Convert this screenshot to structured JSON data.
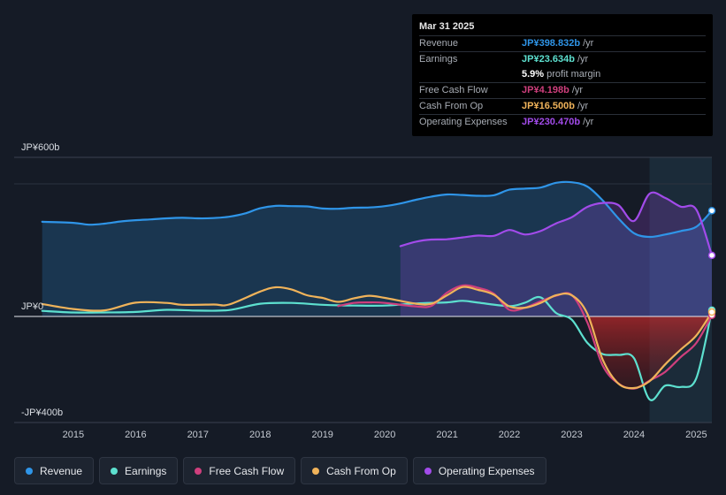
{
  "chart_data": {
    "type": "line",
    "y_axis_labels": {
      "top": "JP¥600b",
      "zero": "JP¥0",
      "bottom": "-JP¥400b"
    },
    "ylim": [
      -400,
      600
    ],
    "x_ticks": [
      "2015",
      "2016",
      "2017",
      "2018",
      "2019",
      "2020",
      "2021",
      "2022",
      "2023",
      "2024",
      "2025"
    ],
    "xlim": [
      2014.05,
      2025.25
    ],
    "forecast_start": 2024.25,
    "series": [
      {
        "name": "Revenue",
        "color": "#2f95e8",
        "fill": true,
        "points": [
          [
            2014.5,
            357
          ],
          [
            2015,
            353
          ],
          [
            2015.25,
            346
          ],
          [
            2015.5,
            350
          ],
          [
            2015.75,
            358
          ],
          [
            2016,
            363
          ],
          [
            2016.25,
            366
          ],
          [
            2016.5,
            370
          ],
          [
            2016.75,
            372
          ],
          [
            2017,
            370
          ],
          [
            2017.25,
            371
          ],
          [
            2017.5,
            376
          ],
          [
            2017.75,
            388
          ],
          [
            2018,
            408
          ],
          [
            2018.25,
            417
          ],
          [
            2018.5,
            416
          ],
          [
            2018.75,
            415
          ],
          [
            2019,
            407
          ],
          [
            2019.25,
            406
          ],
          [
            2019.5,
            410
          ],
          [
            2019.75,
            411
          ],
          [
            2020,
            416
          ],
          [
            2020.25,
            426
          ],
          [
            2020.5,
            440
          ],
          [
            2020.75,
            452
          ],
          [
            2021,
            460
          ],
          [
            2021.25,
            458
          ],
          [
            2021.5,
            455
          ],
          [
            2021.75,
            457
          ],
          [
            2022,
            478
          ],
          [
            2022.25,
            482
          ],
          [
            2022.5,
            486
          ],
          [
            2022.75,
            504
          ],
          [
            2023,
            506
          ],
          [
            2023.25,
            490
          ],
          [
            2023.5,
            437
          ],
          [
            2023.75,
            370
          ],
          [
            2024,
            314
          ],
          [
            2024.25,
            300
          ],
          [
            2024.5,
            309
          ],
          [
            2024.75,
            322
          ],
          [
            2025,
            338
          ],
          [
            2025.25,
            398.832
          ]
        ]
      },
      {
        "name": "Operating Expenses",
        "color": "#a24bea",
        "fill": true,
        "points": [
          [
            2020.25,
            265
          ],
          [
            2020.5,
            282
          ],
          [
            2020.75,
            290
          ],
          [
            2021,
            291
          ],
          [
            2021.25,
            298
          ],
          [
            2021.5,
            305
          ],
          [
            2021.75,
            304
          ],
          [
            2022,
            326
          ],
          [
            2022.25,
            309
          ],
          [
            2022.5,
            322
          ],
          [
            2022.75,
            351
          ],
          [
            2023,
            374
          ],
          [
            2023.25,
            413
          ],
          [
            2023.5,
            428
          ],
          [
            2023.75,
            420
          ],
          [
            2024,
            360
          ],
          [
            2024.25,
            463
          ],
          [
            2024.5,
            447
          ],
          [
            2024.75,
            414
          ],
          [
            2025,
            403
          ],
          [
            2025.25,
            230.47
          ]
        ]
      },
      {
        "name": "Earnings",
        "color": "#5de0cf",
        "fill": false,
        "points": [
          [
            2014.5,
            21
          ],
          [
            2015,
            15
          ],
          [
            2015.5,
            15
          ],
          [
            2016,
            17
          ],
          [
            2016.5,
            25
          ],
          [
            2017,
            22
          ],
          [
            2017.5,
            24
          ],
          [
            2018,
            48
          ],
          [
            2018.5,
            51
          ],
          [
            2019,
            44
          ],
          [
            2019.5,
            41
          ],
          [
            2020,
            41
          ],
          [
            2020.5,
            49
          ],
          [
            2021,
            53
          ],
          [
            2021.25,
            59
          ],
          [
            2021.5,
            52
          ],
          [
            2022,
            39
          ],
          [
            2022.25,
            52
          ],
          [
            2022.5,
            72
          ],
          [
            2022.75,
            13
          ],
          [
            2023,
            -12
          ],
          [
            2023.25,
            -99
          ],
          [
            2023.5,
            -142
          ],
          [
            2023.75,
            -145
          ],
          [
            2024,
            -157
          ],
          [
            2024.25,
            -313
          ],
          [
            2024.5,
            -261
          ],
          [
            2024.75,
            -266
          ],
          [
            2025,
            -233
          ],
          [
            2025.25,
            23.634
          ]
        ]
      },
      {
        "name": "Free Cash Flow",
        "color": "#cf3f7d",
        "fill": false,
        "points": [
          [
            2019.25,
            39
          ],
          [
            2019.5,
            51
          ],
          [
            2019.75,
            53
          ],
          [
            2020,
            51
          ],
          [
            2020.5,
            38
          ],
          [
            2020.75,
            40
          ],
          [
            2021,
            90
          ],
          [
            2021.25,
            117
          ],
          [
            2021.5,
            108
          ],
          [
            2021.75,
            86
          ],
          [
            2022,
            25
          ],
          [
            2022.25,
            33
          ],
          [
            2022.5,
            57
          ],
          [
            2022.75,
            78
          ],
          [
            2023,
            81
          ],
          [
            2023.25,
            -22
          ],
          [
            2023.5,
            -186
          ],
          [
            2023.75,
            -253
          ],
          [
            2024,
            -272
          ],
          [
            2024.25,
            -242
          ],
          [
            2024.5,
            -209
          ],
          [
            2024.75,
            -153
          ],
          [
            2025,
            -100
          ],
          [
            2025.25,
            4.198
          ]
        ]
      },
      {
        "name": "Cash From Op",
        "color": "#f0b35a",
        "fill": false,
        "points": [
          [
            2014.5,
            47
          ],
          [
            2015,
            28
          ],
          [
            2015.5,
            23
          ],
          [
            2016,
            52
          ],
          [
            2016.5,
            51
          ],
          [
            2016.75,
            44
          ],
          [
            2017.25,
            45
          ],
          [
            2017.5,
            45
          ],
          [
            2018,
            94
          ],
          [
            2018.25,
            110
          ],
          [
            2018.5,
            102
          ],
          [
            2018.75,
            80
          ],
          [
            2019,
            70
          ],
          [
            2019.25,
            55
          ],
          [
            2019.5,
            68
          ],
          [
            2019.75,
            78
          ],
          [
            2020,
            70
          ],
          [
            2020.5,
            48
          ],
          [
            2020.75,
            48
          ],
          [
            2021,
            80
          ],
          [
            2021.25,
            111
          ],
          [
            2021.5,
            100
          ],
          [
            2021.75,
            82
          ],
          [
            2022,
            38
          ],
          [
            2022.25,
            33
          ],
          [
            2022.5,
            51
          ],
          [
            2022.75,
            80
          ],
          [
            2023,
            80
          ],
          [
            2023.25,
            11
          ],
          [
            2023.5,
            -164
          ],
          [
            2023.75,
            -253
          ],
          [
            2024,
            -270
          ],
          [
            2024.25,
            -244
          ],
          [
            2024.5,
            -181
          ],
          [
            2024.75,
            -125
          ],
          [
            2025,
            -72
          ],
          [
            2025.25,
            16.5
          ]
        ]
      }
    ]
  },
  "tooltip": {
    "date": "Mar 31 2025",
    "rows": [
      {
        "label": "Revenue",
        "value": "JP¥398.832b",
        "unit": "/yr",
        "color": "#2f95e8"
      },
      {
        "label": "Earnings",
        "value": "JP¥23.634b",
        "unit": "/yr",
        "color": "#5de0cf"
      },
      {
        "label": "",
        "value": "5.9%",
        "unit": "profit margin",
        "color": "#ffffff"
      },
      {
        "label": "Free Cash Flow",
        "value": "JP¥4.198b",
        "unit": "/yr",
        "color": "#cf3f7d"
      },
      {
        "label": "Cash From Op",
        "value": "JP¥16.500b",
        "unit": "/yr",
        "color": "#f0b35a"
      },
      {
        "label": "Operating Expenses",
        "value": "JP¥230.470b",
        "unit": "/yr",
        "color": "#a24bea"
      }
    ]
  },
  "legend": [
    {
      "label": "Revenue",
      "color": "#2f95e8"
    },
    {
      "label": "Earnings",
      "color": "#5de0cf"
    },
    {
      "label": "Free Cash Flow",
      "color": "#cf3f7d"
    },
    {
      "label": "Cash From Op",
      "color": "#f0b35a"
    },
    {
      "label": "Operating Expenses",
      "color": "#a24bea"
    }
  ]
}
